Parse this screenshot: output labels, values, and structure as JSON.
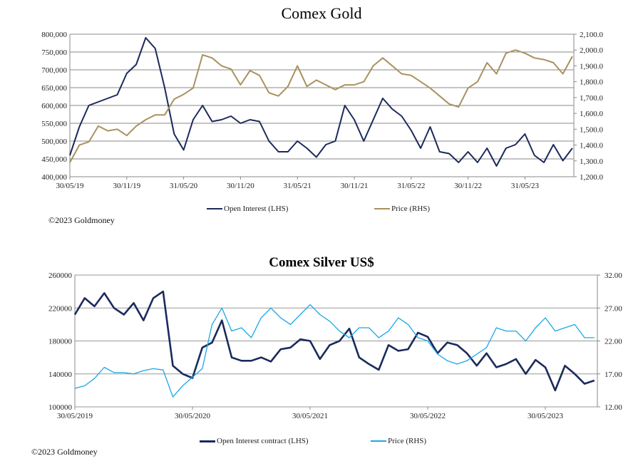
{
  "chart_data": [
    {
      "type": "line",
      "title": "Comex Gold",
      "x": [
        "2019-05",
        "2019-06",
        "2019-07",
        "2019-08",
        "2019-09",
        "2019-10",
        "2019-11",
        "2019-12",
        "2020-01",
        "2020-02",
        "2020-03",
        "2020-04",
        "2020-05",
        "2020-06",
        "2020-07",
        "2020-08",
        "2020-09",
        "2020-10",
        "2020-11",
        "2020-12",
        "2021-01",
        "2021-02",
        "2021-03",
        "2021-04",
        "2021-05",
        "2021-06",
        "2021-07",
        "2021-08",
        "2021-09",
        "2021-10",
        "2021-11",
        "2021-12",
        "2022-01",
        "2022-02",
        "2022-03",
        "2022-04",
        "2022-05",
        "2022-06",
        "2022-07",
        "2022-08",
        "2022-09",
        "2022-10",
        "2022-11",
        "2022-12",
        "2023-01",
        "2023-02",
        "2023-03",
        "2023-04",
        "2023-05",
        "2023-06",
        "2023-07",
        "2023-08",
        "2023-09",
        "2023-10"
      ],
      "x_ticks": [
        "30/05/19",
        "30/11/19",
        "31/05/20",
        "30/11/20",
        "31/05/21",
        "30/11/21",
        "31/05/22",
        "30/11/22",
        "31/05/23"
      ],
      "y_left": {
        "range": [
          400000,
          800000
        ],
        "ticks": [
          "400,000",
          "450,000",
          "500,000",
          "550,000",
          "600,000",
          "650,000",
          "700,000",
          "750,000",
          "800,000"
        ]
      },
      "y_right": {
        "range": [
          1200,
          2100
        ],
        "ticks": [
          "1,200.0",
          "1,300.0",
          "1,400.0",
          "1,500.0",
          "1,600.0",
          "1,700.0",
          "1,800.0",
          "1,900.0",
          "2,000.0",
          "2,100.0"
        ]
      },
      "grid": true,
      "legend_position": "bottom",
      "series": [
        {
          "name": "Open Interest (LHS)",
          "axis": "left",
          "color": "#1b2a5c",
          "values": [
            460000,
            540000,
            600000,
            610000,
            620000,
            630000,
            690000,
            715000,
            790000,
            760000,
            650000,
            520000,
            475000,
            560000,
            600000,
            555000,
            560000,
            570000,
            550000,
            560000,
            555000,
            500000,
            470000,
            470000,
            500000,
            480000,
            455000,
            490000,
            500000,
            600000,
            560000,
            500000,
            560000,
            620000,
            590000,
            570000,
            530000,
            480000,
            540000,
            470000,
            465000,
            440000,
            470000,
            440000,
            480000,
            430000,
            480000,
            490000,
            520000,
            460000,
            440000,
            490000,
            445000,
            480000
          ]
        },
        {
          "name": "Price (RHS)",
          "axis": "right",
          "color": "#a8925e",
          "values": [
            1290,
            1400,
            1420,
            1520,
            1490,
            1500,
            1460,
            1520,
            1560,
            1590,
            1590,
            1690,
            1720,
            1760,
            1970,
            1950,
            1900,
            1880,
            1780,
            1870,
            1840,
            1730,
            1710,
            1770,
            1900,
            1770,
            1810,
            1780,
            1750,
            1780,
            1780,
            1800,
            1900,
            1950,
            1900,
            1850,
            1840,
            1800,
            1760,
            1710,
            1660,
            1640,
            1760,
            1800,
            1920,
            1850,
            1980,
            2000,
            1980,
            1950,
            1940,
            1920,
            1850,
            1960
          ]
        }
      ],
      "copyright": "©2023 Goldmoney"
    },
    {
      "type": "line",
      "title": "Comex Silver US$",
      "x": [
        "2019-05",
        "2019-06",
        "2019-07",
        "2019-08",
        "2019-09",
        "2019-10",
        "2019-11",
        "2019-12",
        "2020-01",
        "2020-02",
        "2020-03",
        "2020-04",
        "2020-05",
        "2020-06",
        "2020-07",
        "2020-08",
        "2020-09",
        "2020-10",
        "2020-11",
        "2020-12",
        "2021-01",
        "2021-02",
        "2021-03",
        "2021-04",
        "2021-05",
        "2021-06",
        "2021-07",
        "2021-08",
        "2021-09",
        "2021-10",
        "2021-11",
        "2021-12",
        "2022-01",
        "2022-02",
        "2022-03",
        "2022-04",
        "2022-05",
        "2022-06",
        "2022-07",
        "2022-08",
        "2022-09",
        "2022-10",
        "2022-11",
        "2022-12",
        "2023-01",
        "2023-02",
        "2023-03",
        "2023-04",
        "2023-05",
        "2023-06",
        "2023-07",
        "2023-08",
        "2023-09",
        "2023-10"
      ],
      "x_ticks": [
        "30/05/2019",
        "30/05/2020",
        "30/05/2021",
        "30/05/2022",
        "30/05/2023"
      ],
      "y_left": {
        "range": [
          100000,
          260000
        ],
        "ticks": [
          "100000",
          "140000",
          "180000",
          "220000",
          "260000"
        ]
      },
      "y_right": {
        "range": [
          12,
          32
        ],
        "ticks": [
          "12.00",
          "17.00",
          "22.00",
          "27.00",
          "32.00"
        ]
      },
      "grid": true,
      "legend_position": "bottom",
      "series": [
        {
          "name": "Open Interest contract (LHS)",
          "axis": "left",
          "color": "#1b2a5c",
          "values": [
            212000,
            232000,
            222000,
            238000,
            220000,
            212000,
            226000,
            205000,
            232000,
            240000,
            150000,
            140000,
            135000,
            172000,
            178000,
            205000,
            160000,
            156000,
            156000,
            160000,
            155000,
            170000,
            172000,
            182000,
            180000,
            158000,
            175000,
            180000,
            195000,
            160000,
            152000,
            145000,
            175000,
            168000,
            170000,
            190000,
            185000,
            165000,
            178000,
            175000,
            165000,
            150000,
            165000,
            148000,
            152000,
            158000,
            140000,
            157000,
            148000,
            120000,
            150000,
            140000,
            128000,
            132000
          ]
        },
        {
          "name": "Price (RHS)",
          "axis": "right",
          "color": "#1aa7e8",
          "values": [
            14.8,
            15.2,
            16.3,
            18.0,
            17.2,
            17.2,
            17.0,
            17.5,
            17.8,
            17.6,
            13.5,
            15.2,
            16.5,
            17.8,
            24.5,
            27.0,
            23.5,
            24.0,
            22.5,
            25.5,
            27.0,
            25.5,
            24.5,
            26.0,
            27.5,
            26.0,
            25.0,
            23.5,
            22.5,
            24.0,
            24.0,
            22.5,
            23.5,
            25.5,
            24.5,
            22.5,
            22.0,
            20.0,
            19.0,
            18.5,
            19.0,
            20.0,
            21.0,
            24.0,
            23.5,
            23.5,
            22.0,
            24.0,
            25.5,
            23.5,
            24.0,
            24.5,
            22.5,
            22.5
          ]
        }
      ],
      "copyright": "©2023 Goldmoney"
    }
  ]
}
